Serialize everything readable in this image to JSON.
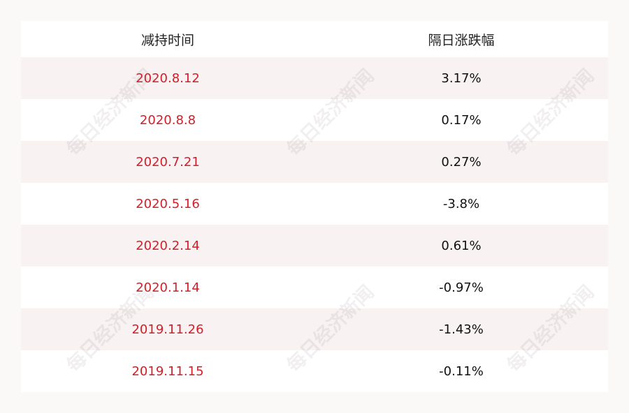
{
  "table": {
    "header": [
      "减持时间",
      "隔日涨跌幅"
    ],
    "rows": [
      [
        "2020.8.12",
        "3.17%"
      ],
      [
        "2020.8.8",
        "0.17%"
      ],
      [
        "2020.7.21",
        "0.27%"
      ],
      [
        "2020.5.16",
        "-3.8%"
      ],
      [
        "2020.2.14",
        "0.61%"
      ],
      [
        "2020.1.14",
        "-0.97%"
      ],
      [
        "2019.11.26",
        "-1.43%"
      ],
      [
        "2019.11.15",
        "-0.11%"
      ]
    ]
  },
  "watermark": "每日经济新闻"
}
